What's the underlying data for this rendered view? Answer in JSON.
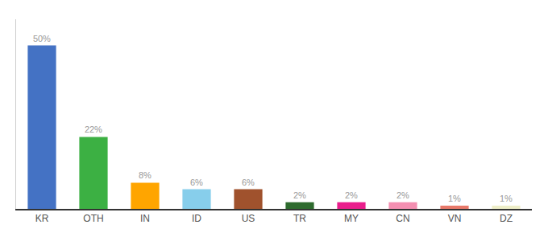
{
  "chart_data": {
    "type": "bar",
    "categories": [
      "KR",
      "OTH",
      "IN",
      "ID",
      "US",
      "TR",
      "MY",
      "CN",
      "VN",
      "DZ"
    ],
    "values": [
      50,
      22,
      8,
      6,
      6,
      2,
      2,
      2,
      1,
      1
    ],
    "value_labels": [
      "50%",
      "22%",
      "8%",
      "6%",
      "6%",
      "2%",
      "2%",
      "2%",
      "1%",
      "1%"
    ],
    "colors": [
      "#4472C4",
      "#3CB043",
      "#FFA500",
      "#87CEEB",
      "#A0522D",
      "#2E6B2E",
      "#E91E8C",
      "#F48FB1",
      "#E8796A",
      "#EEEEC8"
    ],
    "ylim": [
      0,
      58
    ],
    "grid": false,
    "data_labels": true,
    "tick_labels": "x"
  }
}
